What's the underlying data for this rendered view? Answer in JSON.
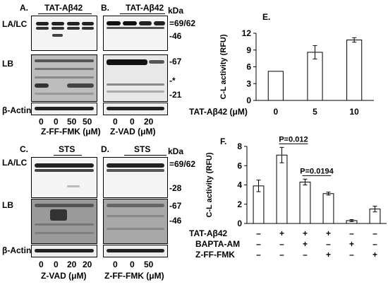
{
  "panels": {
    "A": {
      "letter": "A.",
      "treatment": "TAT-Aβ42",
      "xlabel": "Z-FF-FMK (μM)",
      "lanes": [
        "0",
        "0",
        "50",
        "50"
      ]
    },
    "B": {
      "letter": "B.",
      "treatment": "TAT-Aβ42",
      "xlabel": "Z-VAD (μM)",
      "lanes": [
        "0",
        "0",
        "20",
        ""
      ]
    },
    "C": {
      "letter": "C.",
      "treatment": "STS",
      "xlabel": "Z-VAD (μM)",
      "lanes": [
        "0",
        "0",
        "20",
        "20"
      ]
    },
    "D": {
      "letter": "D.",
      "treatment": "STS",
      "xlabel": "Z-FF-FMK (μM)",
      "lanes": [
        "0",
        "0",
        "50",
        ""
      ]
    },
    "E": {
      "letter": "E."
    },
    "F": {
      "letter": "F."
    }
  },
  "row_labels": {
    "lalc": "LA/LC",
    "lb": "LB",
    "actin": "β-Actin"
  },
  "markers_top": {
    "kda": "kDa",
    "m1": "=69/62",
    "m2": "-46",
    "m3": "-67",
    "m4": "-*",
    "m5": "-21"
  },
  "markers_bottom": {
    "kda": "kDa",
    "m1": "=69/62",
    "m2": "-28",
    "m3": "-67",
    "m4": "-46"
  },
  "chart_data": [
    {
      "type": "bar",
      "panel": "E",
      "categories": [
        "0",
        "5",
        "10"
      ],
      "values": [
        5.2,
        8.6,
        10.8
      ],
      "errors": [
        0,
        1.2,
        0.4
      ],
      "xlabel": "TAT-Aβ42 (μM)",
      "ylabel": "C-L activity (RFU)",
      "ylim": [
        0,
        12
      ],
      "yticks": [
        0,
        3,
        6,
        9,
        12
      ]
    },
    {
      "type": "bar",
      "panel": "F",
      "categories": [
        "1",
        "2",
        "3",
        "4",
        "5",
        "6"
      ],
      "values": [
        3.9,
        7.1,
        4.3,
        3.1,
        0.3,
        1.5
      ],
      "errors": [
        0.6,
        0.8,
        0.3,
        0.15,
        0.1,
        0.3
      ],
      "ylabel": "C-L activity (RFU)",
      "ylim": [
        0,
        8
      ],
      "yticks": [
        0,
        2,
        4,
        6,
        8
      ],
      "annotations": [
        {
          "text": "P=0.012",
          "from": 2,
          "to": 3
        },
        {
          "text": "P=0.0194",
          "from": 3,
          "to": 4
        }
      ],
      "condition_rows": [
        {
          "label": "TAT-Aβ42",
          "signs": [
            "–",
            "+",
            "+",
            "+",
            "–",
            "–"
          ]
        },
        {
          "label": "BAPTA-AM",
          "signs": [
            "–",
            "–",
            "+",
            "–",
            "+",
            "–"
          ]
        },
        {
          "label": "Z-FF-FMK",
          "signs": [
            "–",
            "–",
            "–",
            "+",
            "–",
            "+"
          ]
        }
      ]
    }
  ]
}
